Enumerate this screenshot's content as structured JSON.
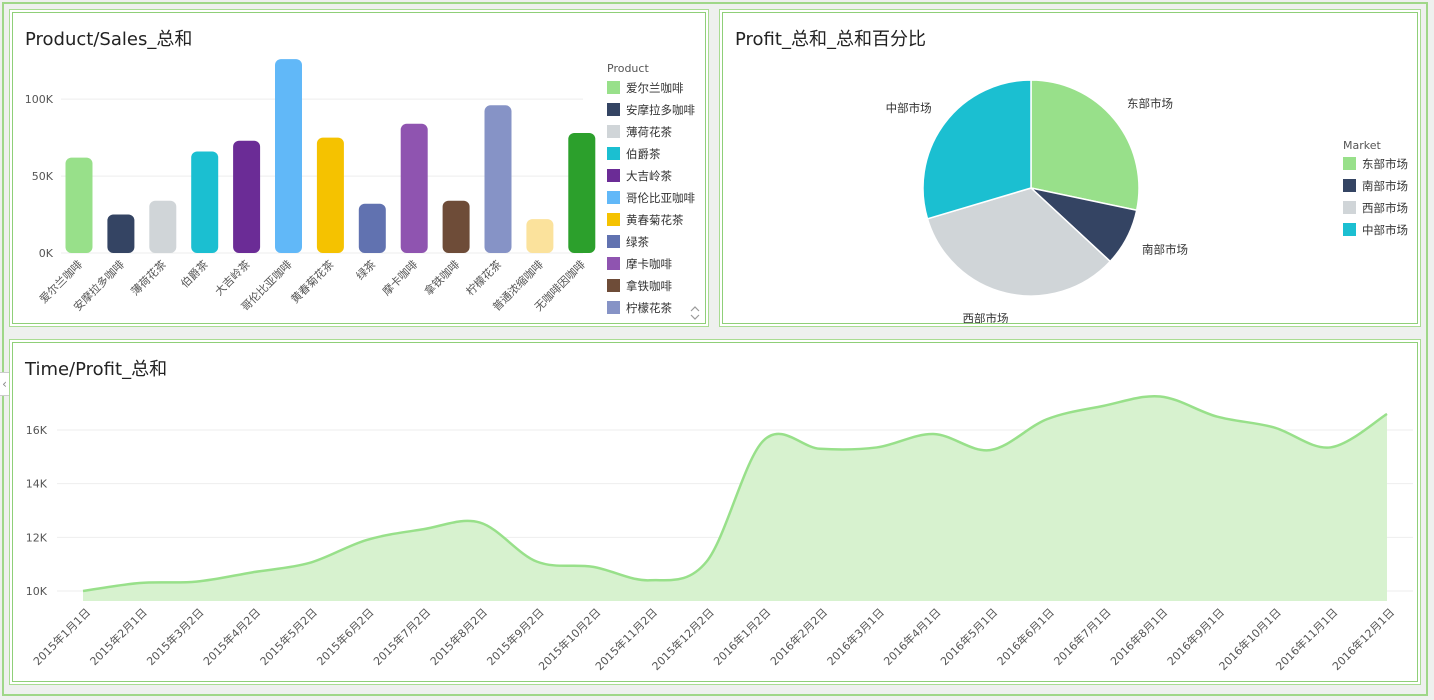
{
  "panels": {
    "bar": {
      "title": "Product/Sales_总和"
    },
    "pie": {
      "title": "Profit_总和_总和百分比"
    },
    "area": {
      "title": "Time/Profit_总和"
    }
  },
  "chart_data": [
    {
      "type": "bar",
      "title": "Product/Sales_总和",
      "legend_title": "Product",
      "legend_position": "right",
      "categories": [
        "爱尔兰咖啡",
        "安摩拉多咖啡",
        "薄荷花茶",
        "伯爵茶",
        "大吉岭茶",
        "哥伦比亚咖啡",
        "黄春菊花茶",
        "绿茶",
        "摩卡咖啡",
        "拿铁咖啡",
        "柠檬花茶",
        "普通浓缩咖啡",
        "无咖啡因咖啡"
      ],
      "values": [
        62000,
        25000,
        34000,
        66000,
        73000,
        126000,
        75000,
        32000,
        84000,
        34000,
        96000,
        22000,
        78000
      ],
      "colors": [
        "#98e08a",
        "#344463",
        "#d0d5d8",
        "#1bbfd1",
        "#6b2c96",
        "#61b8f8",
        "#f5c200",
        "#6172b0",
        "#8f54b0",
        "#6e4c38",
        "#8693c6",
        "#fbe29c",
        "#2ca02c"
      ],
      "legend_entries": [
        "爱尔兰咖啡",
        "安摩拉多咖啡",
        "薄荷花茶",
        "伯爵茶",
        "大吉岭茶",
        "哥伦比亚咖啡",
        "黄春菊花茶",
        "绿茶",
        "摩卡咖啡",
        "拿铁咖啡",
        "柠檬花茶"
      ],
      "yticks": [
        "0K",
        "50K",
        "100K"
      ],
      "ytick_values": [
        0,
        50000,
        100000
      ],
      "ylim": [
        0,
        130000
      ],
      "grid": true
    },
    {
      "type": "pie",
      "title": "Profit_总和_总和百分比",
      "legend_title": "Market",
      "legend_position": "right",
      "labels": [
        "东部市场",
        "南部市场",
        "西部市场",
        "中部市场"
      ],
      "values": [
        28.3,
        8.6,
        33.5,
        29.6
      ],
      "colors": [
        "#98e08a",
        "#344463",
        "#d0d5d8",
        "#1bbfd1"
      ]
    },
    {
      "type": "area",
      "title": "Time/Profit_总和",
      "color": "#98e08a",
      "fill": "#d7f2cf",
      "x": [
        "2015年1月1日",
        "2015年2月1日",
        "2015年3月2日",
        "2015年4月2日",
        "2015年5月2日",
        "2015年6月2日",
        "2015年7月2日",
        "2015年8月2日",
        "2015年9月2日",
        "2015年10月2日",
        "2015年11月2日",
        "2015年12月2日",
        "2016年1月2日",
        "2016年2月2日",
        "2016年3月1日",
        "2016年4月1日",
        "2016年5月1日",
        "2016年6月1日",
        "2016年7月1日",
        "2016年8月1日",
        "2016年9月1日",
        "2016年10月1日",
        "2016年11月1日",
        "2016年12月1日"
      ],
      "values": [
        10000,
        10300,
        10350,
        10700,
        11050,
        11900,
        12300,
        12550,
        11100,
        10900,
        10400,
        11100,
        15600,
        15300,
        15350,
        15850,
        15250,
        16400,
        16900,
        17250,
        16500,
        16100,
        15350,
        16600
      ],
      "yticks": [
        "10K",
        "12K",
        "14K",
        "16K"
      ],
      "ytick_values": [
        10000,
        12000,
        14000,
        16000
      ],
      "ylim": [
        9650,
        17800
      ],
      "grid": true
    }
  ]
}
